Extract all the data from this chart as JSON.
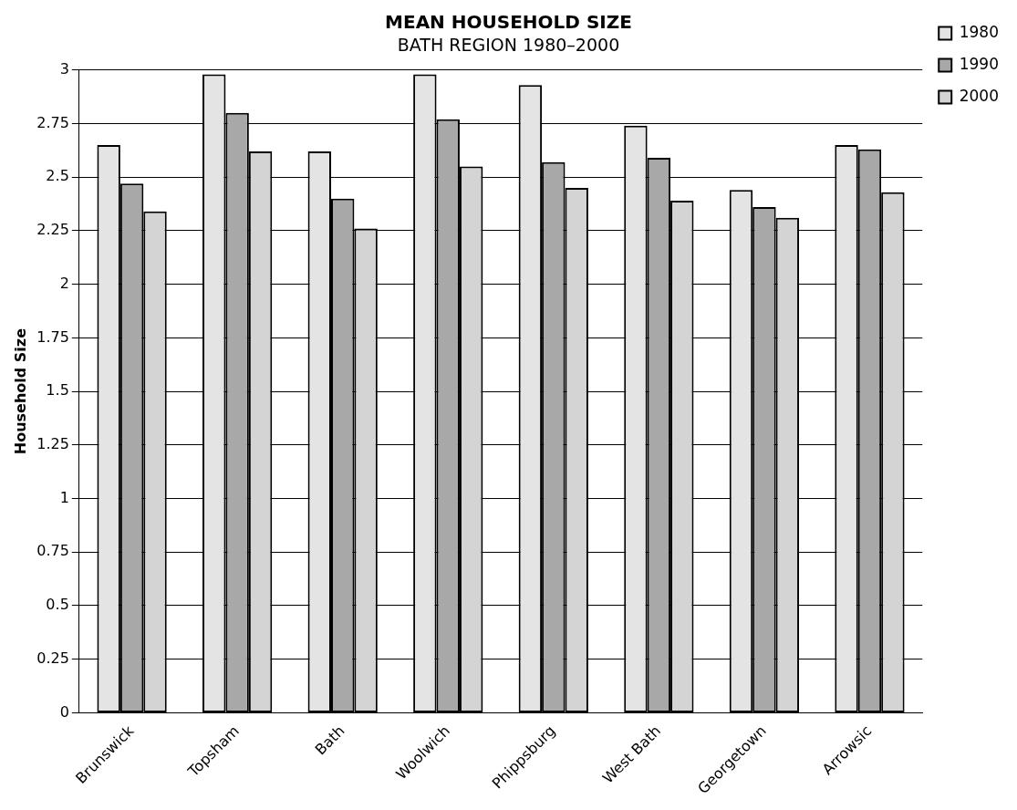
{
  "chart_data": {
    "type": "bar",
    "title": "MEAN HOUSEHOLD SIZE",
    "subtitle": "BATH REGION 1980–2000",
    "ylabel": "Household Size",
    "categories": [
      "Brunswick",
      "Topsham",
      "Bath",
      "Woolwich",
      "Phippsburg",
      "West Bath",
      "Georgetown",
      "Arrowsic"
    ],
    "series": [
      {
        "name": "1980",
        "color": "#e4e4e4",
        "values": [
          2.65,
          2.98,
          2.62,
          2.98,
          2.93,
          2.74,
          2.44,
          2.65
        ]
      },
      {
        "name": "1990",
        "color": "#a8a8a8",
        "values": [
          2.47,
          2.8,
          2.4,
          2.77,
          2.57,
          2.59,
          2.36,
          2.63
        ]
      },
      {
        "name": "2000",
        "color": "#d4d4d4",
        "values": [
          2.34,
          2.62,
          2.26,
          2.55,
          2.45,
          2.39,
          2.31,
          2.43
        ]
      }
    ],
    "ylim": [
      0,
      3
    ],
    "yticks": [
      0,
      0.25,
      0.5,
      0.75,
      1,
      1.25,
      1.5,
      1.75,
      2,
      2.25,
      2.5,
      2.75,
      3
    ],
    "grid": "y",
    "legend": "top right"
  }
}
